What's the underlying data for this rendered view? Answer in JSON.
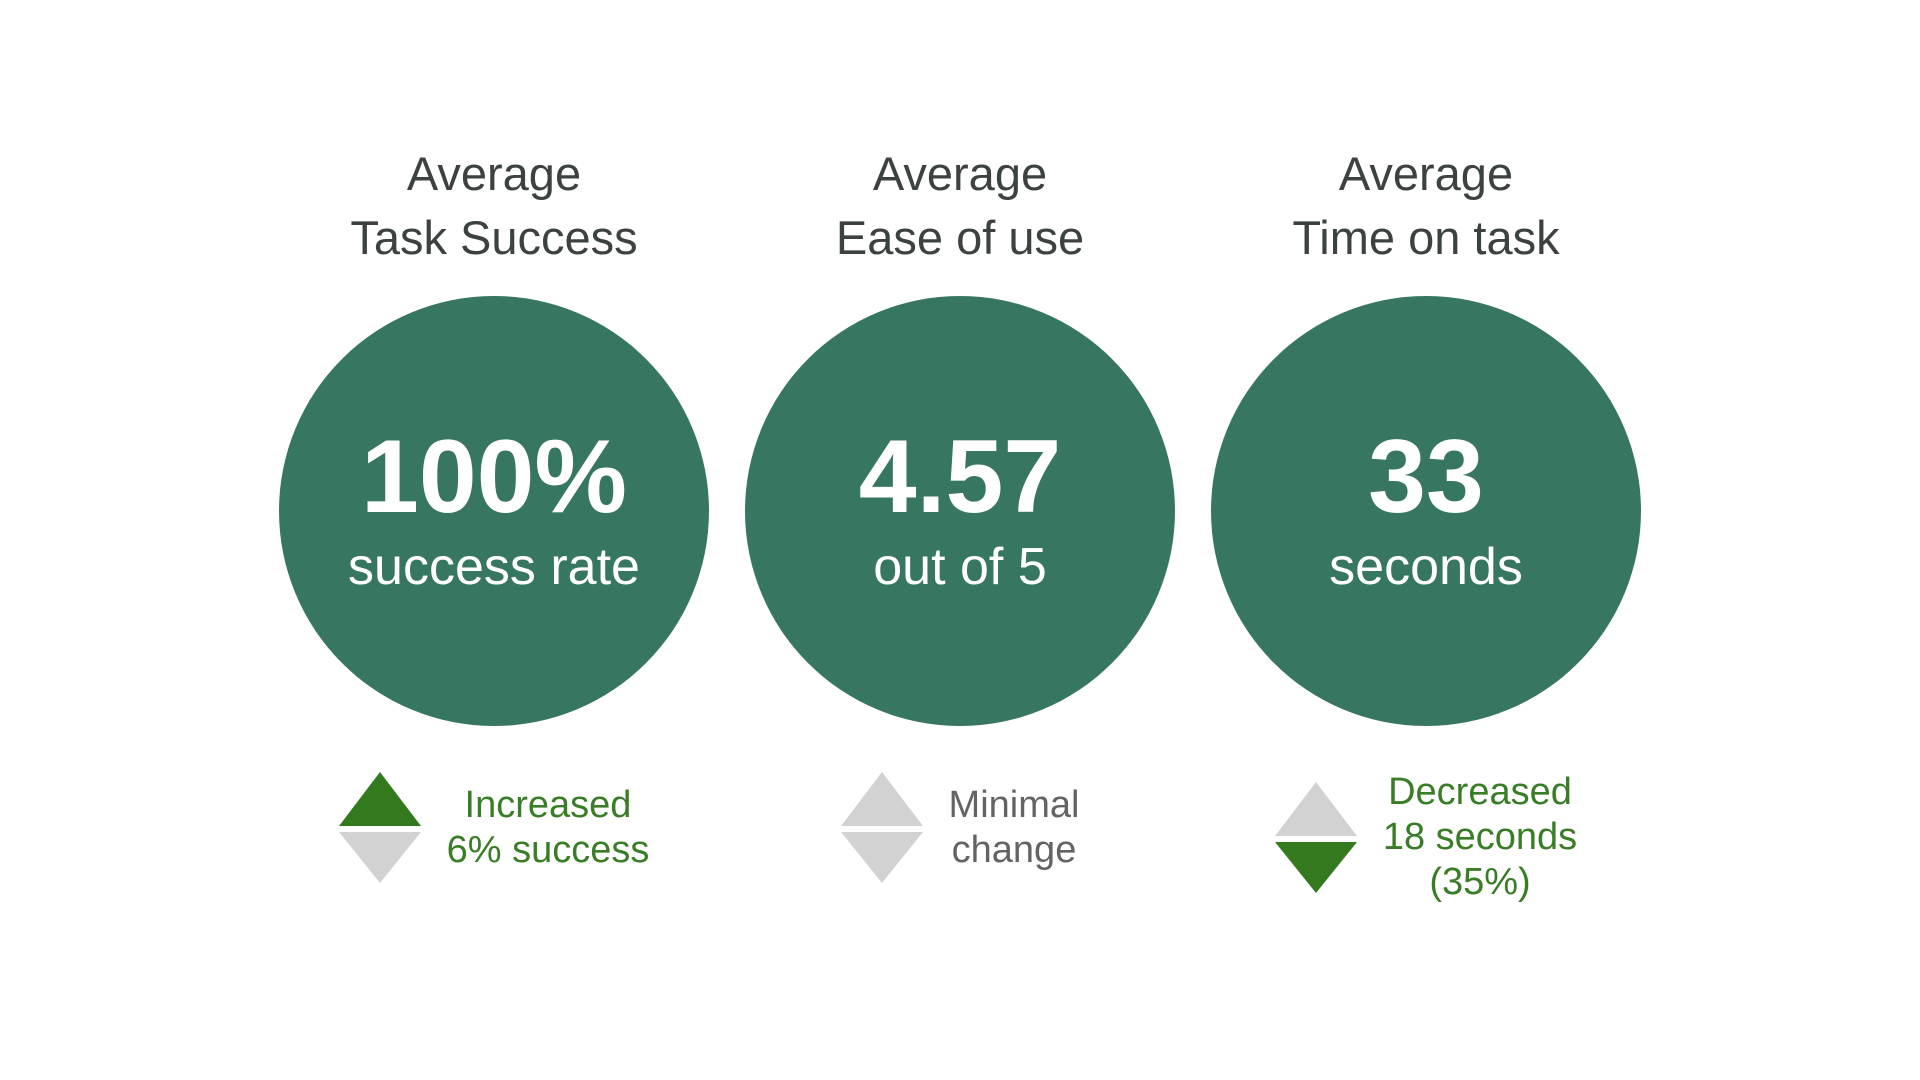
{
  "page": {
    "background_color": "#ffffff",
    "title_text_color": "#3B423F",
    "circle_fill_color": "#377660",
    "circle_text_color": "#ffffff",
    "positive_green": "#337A1E",
    "neutral_gray": "#D2D2D2",
    "gray_text_color": "#636363",
    "green_text_color": "#3A7D27"
  },
  "metrics": [
    {
      "title_line1": "Average",
      "title_line2": "Task Success",
      "value": "100%",
      "caption": "success rate",
      "delta_lines": [
        "Increased",
        "6% success"
      ],
      "arrow_up_color": "#337A1E",
      "arrow_down_color": "#D2D2D2",
      "delta_text_color": "#3A7D27"
    },
    {
      "title_line1": "Average",
      "title_line2": "Ease of use",
      "value": "4.57",
      "caption": "out of 5",
      "delta_lines": [
        "Minimal",
        "change"
      ],
      "arrow_up_color": "#D2D2D2",
      "arrow_down_color": "#D2D2D2",
      "delta_text_color": "#636363"
    },
    {
      "title_line1": "Average",
      "title_line2": "Time on task",
      "value": "33",
      "caption": "seconds",
      "delta_lines": [
        "Decreased",
        "18 seconds",
        "(35%)"
      ],
      "arrow_up_color": "#D2D2D2",
      "arrow_down_color": "#337A1E",
      "delta_text_color": "#3A7D27"
    }
  ],
  "chart_data": {
    "type": "kpi",
    "title": "",
    "metrics": [
      {
        "name": "Average Task Success",
        "value": 100,
        "unit": "%",
        "display": "100% success rate",
        "change": "Increased 6% success",
        "change_direction": "up",
        "change_sentiment": "positive"
      },
      {
        "name": "Average Ease of use",
        "value": 4.57,
        "scale_max": 5,
        "display": "4.57 out of 5",
        "change": "Minimal change",
        "change_direction": "none",
        "change_sentiment": "neutral"
      },
      {
        "name": "Average Time on task",
        "value": 33,
        "unit": "seconds",
        "display": "33 seconds",
        "change": "Decreased 18 seconds (35%)",
        "change_delta": -18,
        "change_percent": -35,
        "change_direction": "down",
        "change_sentiment": "positive"
      }
    ]
  }
}
